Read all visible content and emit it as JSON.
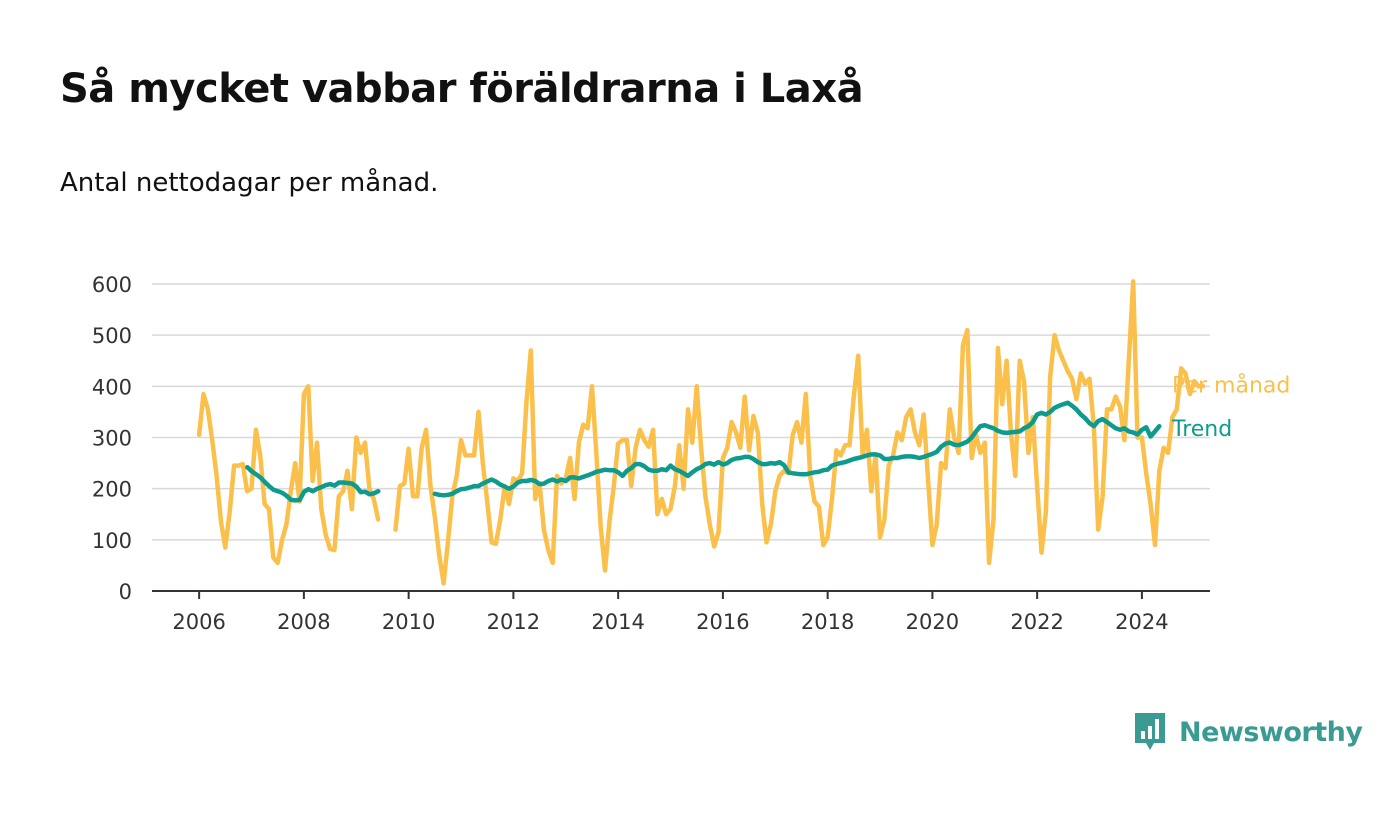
{
  "header": {
    "title": "Så mycket vabbar föräldrarna i Laxå",
    "subtitle": "Antal nettodagar per månad."
  },
  "brand": {
    "name": "Newsworthy",
    "icon": "newsworthy-logo-icon",
    "color": "#3a9b92"
  },
  "chart_data": {
    "type": "line",
    "x_unit": "decimal year",
    "xlim": [
      2005.1,
      2025.3
    ],
    "ylim": [
      0,
      600
    ],
    "x_ticks": [
      2006,
      2008,
      2010,
      2012,
      2014,
      2016,
      2018,
      2020,
      2022,
      2024
    ],
    "y_ticks": [
      0,
      100,
      200,
      300,
      400,
      500,
      600
    ],
    "x_tick_labels": [
      "2006",
      "2008",
      "2010",
      "2012",
      "2014",
      "2016",
      "2018",
      "2020",
      "2022",
      "2024"
    ],
    "y_tick_labels": [
      "0",
      "100",
      "200",
      "300",
      "400",
      "500",
      "600"
    ],
    "grid": true,
    "legend": "inline labels at right end of lines",
    "series": [
      {
        "name": "Per månad",
        "color": "#fbc04b",
        "segments": [
          {
            "x_start": 2006.0,
            "x_step": 0.08333,
            "values": [
              305,
              385,
              355,
              295,
              225,
              135,
              85,
              155,
              245,
              245,
              248,
              195,
              200,
              315,
              265,
              170,
              160,
              65,
              55,
              100,
              130,
              195,
              250,
              175,
              385,
              400,
              215,
              290,
              160,
              110,
              82,
              80,
              185,
              195,
              235,
              160,
              300,
              270,
              290,
              200,
              180,
              140
            ]
          },
          {
            "x_start": 2009.75,
            "x_step": 0.08333,
            "values": [
              120,
              205,
              210,
              278,
              185,
              185,
              280,
              315,
              205,
              145,
              70,
              15,
              95,
              185,
              225,
              295,
              265,
              265,
              265,
              350,
              250,
              175,
              95,
              92,
              140,
              205,
              170,
              220,
              215,
              230,
              370,
              470,
              180,
              210,
              120,
              80,
              55,
              225,
              210,
              220,
              260,
              180,
              290,
              325,
              318,
              400,
              270,
              125,
              40,
              135,
              205,
              288,
              295,
              295,
              205,
              280,
              315,
              295,
              282,
              315,
              150,
              180,
              150,
              160,
              205,
              285,
              200,
              355,
              290,
              400,
              280,
              185,
              130,
              87,
              115,
              260,
              280,
              330,
              310,
              280,
              380,
              275,
              342,
              310,
              170,
              95,
              130,
              195,
              225,
              235,
              230,
              305,
              330,
              290,
              385,
              225,
              175,
              165,
              90,
              105,
              180,
              275,
              265,
              285,
              285,
              380,
              460,
              265,
              315,
              195,
              265,
              105,
              140,
              245,
              265,
              310,
              295,
              340,
              355,
              310,
              285,
              345,
              220,
              90,
              130,
              250,
              240,
              355,
              300,
              270,
              480,
              510,
              260,
              305,
              270,
              290,
              55,
              140,
              475,
              365,
              450,
              310,
              225,
              450,
              410,
              270,
              340,
              205,
              75,
              155,
              420,
              500,
              470,
              450,
              430,
              415,
              375,
              425,
              405,
              415,
              320,
              120,
              185,
              355,
              355,
              380,
              360,
              295,
              450,
              605,
              300,
              300,
              230,
              170,
              90,
              235,
              280,
              270,
              340,
              355,
              435,
              425,
              385,
              410,
              400,
              400
            ]
          }
        ]
      },
      {
        "name": "Trend",
        "color": "#0e9b8d",
        "segments": [
          {
            "x_start": 2006.92,
            "x_step": 0.08333,
            "values": [
              242,
              234,
              228,
              222,
              213,
              205,
              198,
              195,
              192,
              186,
              178,
              177,
              178,
              194,
              199,
              195,
              200,
              203,
              207,
              209,
              206,
              212,
              212,
              211,
              210,
              204,
              193,
              194,
              189,
              191,
              195
            ]
          },
          {
            "x_start": 2010.5,
            "x_step": 0.08333,
            "values": [
              190,
              188,
              187,
              188,
              190,
              195,
              199,
              200,
              202,
              205,
              205,
              210,
              214,
              218,
              214,
              208,
              204,
              200,
              204,
              212,
              215,
              215,
              217,
              215,
              209,
              210,
              215,
              218,
              214,
              218,
              215,
              222,
              222,
              220,
              223,
              226,
              229,
              233,
              235,
              237,
              236,
              236,
              232,
              225,
              235,
              240,
              248,
              248,
              244,
              237,
              235,
              235,
              238,
              236,
              245,
              238,
              235,
              230,
              225,
              232,
              238,
              242,
              248,
              250,
              247,
              252,
              247,
              250,
              256,
              259,
              260,
              262,
              262,
              258,
              252,
              248,
              248,
              250,
              249,
              252,
              246,
              232,
              230,
              229,
              228,
              228,
              230,
              232,
              233,
              236,
              237,
              245,
              248,
              250,
              252,
              255,
              258,
              260,
              262,
              265,
              267,
              267,
              265,
              258,
              258,
              260,
              260,
              262,
              263,
              263,
              262,
              260,
              262,
              265,
              268,
              272,
              282,
              288,
              290,
              286,
              285,
              288,
              292,
              300,
              312,
              322,
              324,
              321,
              318,
              313,
              310,
              309,
              310,
              311,
              312,
              318,
              322,
              330,
              345,
              348,
              345,
              350,
              358,
              362,
              365,
              368,
              362,
              355,
              345,
              338,
              328,
              322,
              332,
              336,
              330,
              324,
              318,
              315,
              318,
              312,
              310,
              306,
              315,
              320,
              302,
              312,
              322
            ]
          }
        ]
      }
    ]
  }
}
